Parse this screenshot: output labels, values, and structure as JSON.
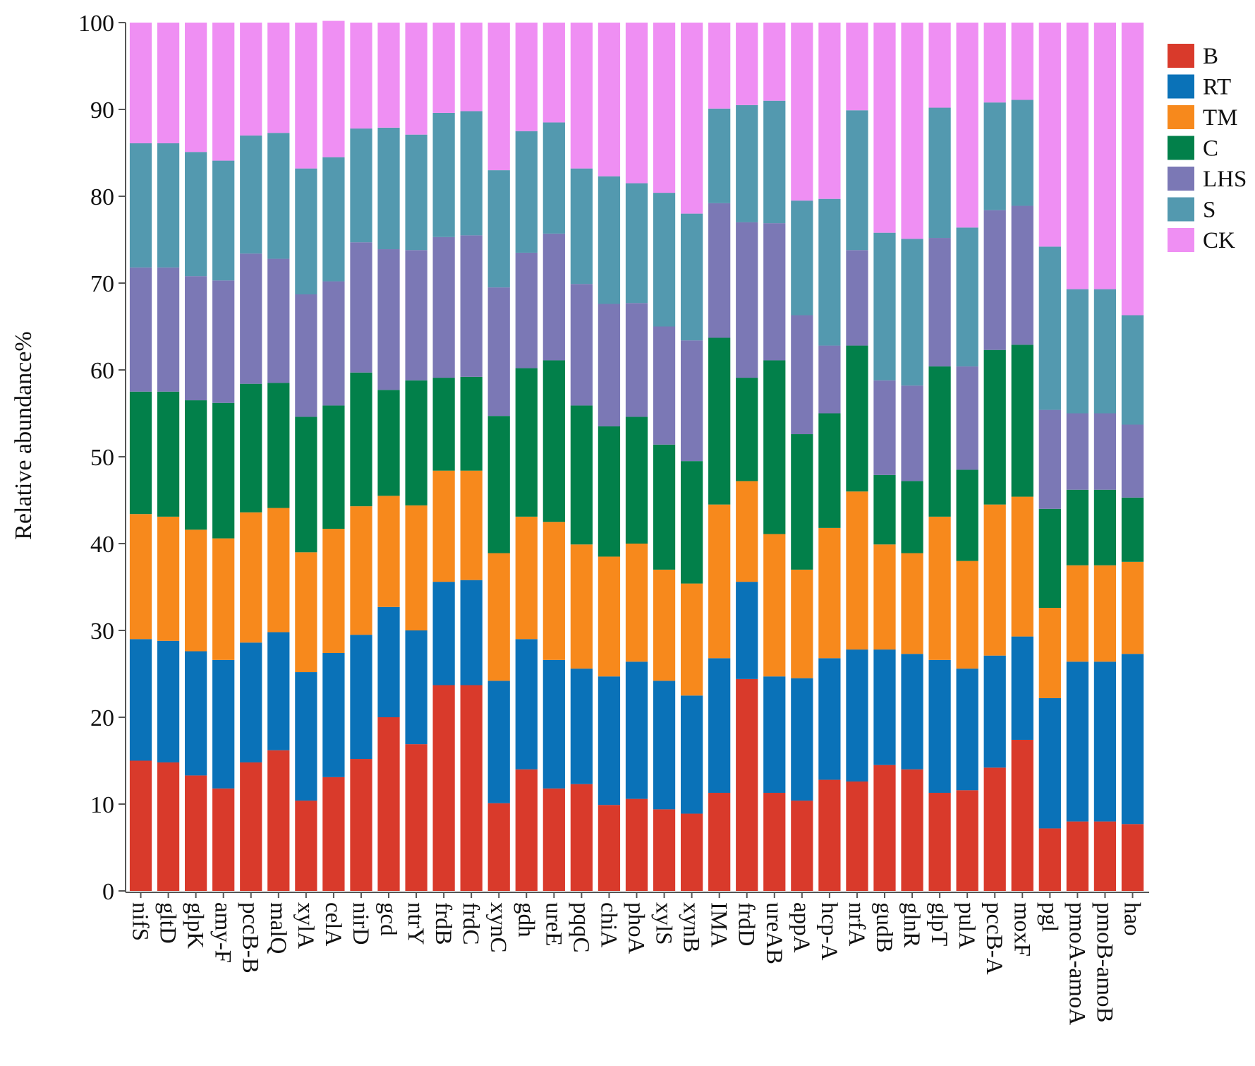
{
  "chart_data": {
    "type": "bar",
    "stacked": true,
    "ylabel": "Relative abundance%",
    "ylim": [
      0,
      100
    ],
    "yticks": [
      0,
      10,
      20,
      30,
      40,
      50,
      60,
      70,
      80,
      90,
      100
    ],
    "legend_position": "top-right",
    "categories": [
      "nifS",
      "gltD",
      "glpK",
      "amy-F",
      "pccB-B",
      "malQ",
      "xylA",
      "celA",
      "nirD",
      "gcd",
      "ntrY",
      "frdB",
      "frdC",
      "xynC",
      "gdh",
      "ureE",
      "pqqC",
      "chiA",
      "phoA",
      "xylS",
      "xynB",
      "IMA",
      "frdD",
      "ureAB",
      "appA",
      "hcp-A",
      "nrfA",
      "gudB",
      "glnR",
      "glpT",
      "pulA",
      "pccB-A",
      "moxF",
      "pgl",
      "pmoA-amoA",
      "pmoB-amoB",
      "hao"
    ],
    "series": [
      {
        "name": "B",
        "color": "#d93a2b",
        "values": [
          15.0,
          14.8,
          13.3,
          11.8,
          14.8,
          16.2,
          10.4,
          13.1,
          15.2,
          20.0,
          16.9,
          23.7,
          23.7,
          10.1,
          14.0,
          11.8,
          12.3,
          9.9,
          10.6,
          9.4,
          8.9,
          11.3,
          24.4,
          11.3,
          10.4,
          12.8,
          12.6,
          14.5,
          14.0,
          11.3,
          11.6,
          14.2,
          17.4,
          7.2,
          8.0,
          8.0,
          7.7
        ]
      },
      {
        "name": "RT",
        "color": "#0a72b8",
        "values": [
          14.0,
          14.0,
          14.3,
          14.8,
          13.8,
          13.6,
          14.8,
          14.3,
          14.3,
          12.7,
          13.1,
          11.9,
          12.1,
          14.1,
          15.0,
          14.8,
          13.3,
          14.8,
          15.8,
          14.8,
          13.6,
          15.5,
          11.2,
          13.4,
          14.1,
          14.0,
          15.2,
          13.3,
          13.3,
          15.3,
          14.0,
          12.9,
          11.9,
          15.0,
          18.4,
          18.4,
          19.6
        ]
      },
      {
        "name": "TM",
        "color": "#f7891c",
        "values": [
          14.4,
          14.3,
          14.0,
          14.0,
          15.0,
          14.3,
          13.8,
          14.3,
          14.8,
          12.8,
          14.4,
          12.8,
          12.6,
          14.7,
          14.1,
          15.9,
          14.3,
          13.8,
          13.6,
          12.8,
          12.9,
          17.7,
          11.6,
          16.4,
          12.5,
          15.0,
          18.2,
          12.1,
          11.6,
          16.5,
          12.4,
          17.4,
          16.1,
          10.4,
          11.1,
          11.1,
          10.6
        ]
      },
      {
        "name": "C",
        "color": "#02804a",
        "values": [
          14.1,
          14.4,
          14.9,
          15.6,
          14.8,
          14.4,
          15.6,
          14.2,
          15.4,
          12.2,
          14.4,
          10.7,
          10.8,
          15.8,
          17.1,
          18.6,
          16.0,
          15.0,
          14.6,
          14.4,
          14.1,
          19.2,
          11.9,
          20.0,
          15.6,
          13.2,
          16.8,
          8.0,
          8.3,
          17.3,
          10.5,
          17.8,
          17.5,
          11.4,
          8.7,
          8.7,
          7.4
        ]
      },
      {
        "name": "LHS",
        "color": "#7b78b5",
        "values": [
          14.3,
          14.3,
          14.3,
          14.1,
          15.0,
          14.3,
          14.1,
          14.3,
          15.0,
          16.2,
          15.0,
          16.2,
          16.3,
          14.8,
          13.3,
          14.6,
          14.0,
          14.1,
          13.1,
          13.6,
          13.9,
          15.5,
          17.9,
          15.8,
          13.7,
          7.8,
          11.0,
          10.9,
          11.0,
          14.8,
          11.9,
          16.1,
          16.0,
          11.4,
          8.8,
          8.8,
          8.4
        ]
      },
      {
        "name": "S",
        "color": "#5399af",
        "values": [
          14.3,
          14.3,
          14.3,
          13.8,
          13.6,
          14.5,
          14.5,
          14.3,
          13.1,
          14.0,
          13.3,
          14.3,
          14.3,
          13.5,
          14.0,
          12.8,
          13.3,
          14.7,
          13.8,
          15.4,
          14.6,
          10.9,
          13.5,
          14.1,
          13.2,
          16.9,
          16.1,
          17.0,
          16.9,
          15.0,
          16.0,
          12.4,
          12.2,
          18.8,
          14.3,
          14.3,
          12.6
        ]
      },
      {
        "name": "CK",
        "color": "#ef8ff3",
        "values": [
          13.9,
          13.9,
          14.9,
          15.9,
          13.0,
          12.7,
          16.8,
          15.7,
          12.2,
          12.1,
          12.9,
          10.4,
          10.2,
          17.0,
          12.5,
          11.5,
          16.8,
          17.7,
          18.5,
          19.6,
          22.0,
          9.9,
          9.5,
          9.0,
          20.5,
          20.3,
          10.1,
          24.2,
          24.9,
          9.8,
          23.6,
          9.2,
          8.9,
          25.8,
          30.7,
          30.7,
          33.7
        ]
      }
    ]
  }
}
